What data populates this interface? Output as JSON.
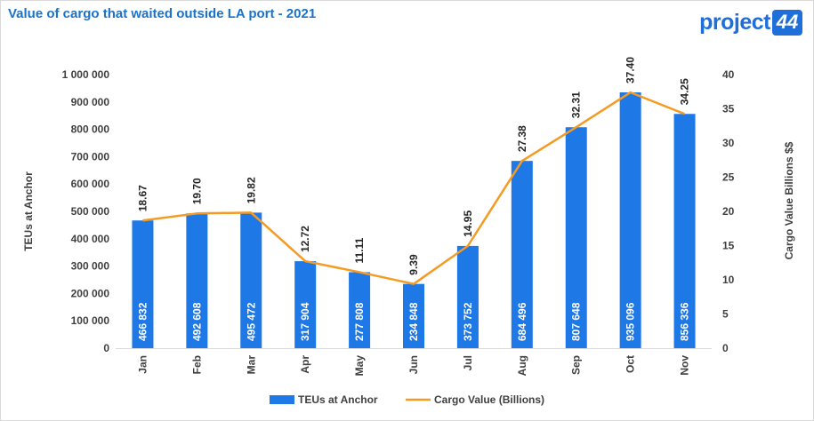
{
  "header": {
    "title": "Value of cargo that waited outside LA port - 2021",
    "logo_text": "project",
    "logo_badge": "44"
  },
  "colors": {
    "bar": "#1e78e6",
    "line": "#f59a23",
    "title": "#1a73c9"
  },
  "chart_data": {
    "type": "bar",
    "title": "Value of cargo that waited outside LA port - 2021",
    "categories": [
      "Jan",
      "Feb",
      "Mar",
      "Apr",
      "May",
      "Jun",
      "Jul",
      "Aug",
      "Sep",
      "Oct",
      "Nov"
    ],
    "series": [
      {
        "name": "TEUs at Anchor",
        "type": "bar",
        "axis": "left",
        "values": [
          466832,
          492608,
          495472,
          317904,
          277808,
          234848,
          373752,
          684496,
          807648,
          935096,
          856336
        ],
        "labels": [
          "466 832",
          "492 608",
          "495 472",
          "317 904",
          "277 808",
          "234 848",
          "373 752",
          "684 496",
          "807 648",
          "935 096",
          "856 336"
        ]
      },
      {
        "name": "Cargo Value (Billions)",
        "type": "line",
        "axis": "right",
        "values": [
          18.67,
          19.7,
          19.82,
          12.72,
          11.11,
          9.39,
          14.95,
          27.38,
          32.31,
          37.4,
          34.25
        ],
        "labels": [
          "18.67",
          "19.70",
          "19.82",
          "12.72",
          "11.11",
          "9.39",
          "14.95",
          "27.38",
          "32.31",
          "37.40",
          "34.25"
        ]
      }
    ],
    "ylabel": "TEUs at Anchor",
    "y2label": "Cargo Value  Billions $$",
    "ylim": [
      0,
      1000000
    ],
    "y2lim": [
      0,
      40
    ],
    "yticks": [
      "0",
      "100 000",
      "200 000",
      "300 000",
      "400 000",
      "500 000",
      "600 000",
      "700 000",
      "800 000",
      "900 000",
      "1 000 000"
    ],
    "y2ticks": [
      "0",
      "5",
      "10",
      "15",
      "20",
      "25",
      "30",
      "35",
      "40"
    ],
    "grid": false,
    "legend_position": "bottom"
  }
}
